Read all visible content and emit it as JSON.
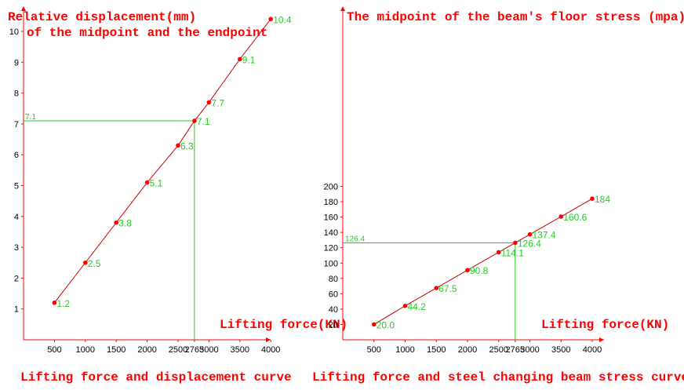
{
  "colors": {
    "axis": "#ff0000",
    "line": "#cc0000",
    "point": "#ff0000",
    "label": "#22cc22",
    "ref": "#22cc22",
    "tick": "#000000"
  },
  "chart_data": [
    {
      "type": "line",
      "title": "Relative displacement(mm)",
      "subtitle": "of the midpoint and the endpoint",
      "caption": "Lifting force and displacement curve",
      "xlabel": "Lifting force(KN)",
      "ylabel": "",
      "x": [
        500,
        1000,
        1500,
        2000,
        2500,
        2765,
        3000,
        3500,
        4000
      ],
      "values": [
        1.2,
        2.5,
        3.8,
        5.1,
        6.3,
        7.1,
        7.7,
        9.1,
        10.4
      ],
      "labels": [
        "1.2",
        "2.5",
        "3.8",
        "5.1",
        "6.3",
        "7.1",
        "7.7",
        "9.1",
        "10.4"
      ],
      "xticks": [
        500,
        1000,
        1500,
        2000,
        2500,
        2765,
        3000,
        3500,
        4000
      ],
      "yticks": [
        1,
        2,
        3,
        4,
        5,
        6,
        7,
        8,
        9,
        10
      ],
      "xlim": [
        0,
        4000
      ],
      "ylim": [
        0,
        10
      ],
      "reference": {
        "x": 2765,
        "y": 7.1,
        "label": "7.1"
      },
      "grid": false,
      "legend": "none"
    },
    {
      "type": "line",
      "title": "The midpoint of the beam's floor stress (mpa)",
      "subtitle": "",
      "caption": "Lifting force and steel changing beam stress curve",
      "xlabel": "Lifting force(KN)",
      "ylabel": "",
      "x": [
        500,
        1000,
        1500,
        2000,
        2500,
        2765,
        3000,
        3500,
        4000
      ],
      "values": [
        20.0,
        44.2,
        67.5,
        90.8,
        114.1,
        126.4,
        137.4,
        160.6,
        184
      ],
      "labels": [
        "20.0",
        "44.2",
        "67.5",
        "90.8",
        "114.1",
        "126.4",
        "137.4",
        "160.6",
        "184"
      ],
      "xticks": [
        500,
        1000,
        1500,
        2000,
        2500,
        2765,
        3000,
        3500,
        4000
      ],
      "yticks": [
        20,
        40,
        60,
        80,
        100,
        120,
        140,
        160,
        180,
        200
      ],
      "xlim": [
        0,
        4000
      ],
      "ylim": [
        0,
        200
      ],
      "reference": {
        "x": 2765,
        "y": 126.4,
        "label": "126.4"
      },
      "grid": false,
      "legend": "none"
    }
  ]
}
